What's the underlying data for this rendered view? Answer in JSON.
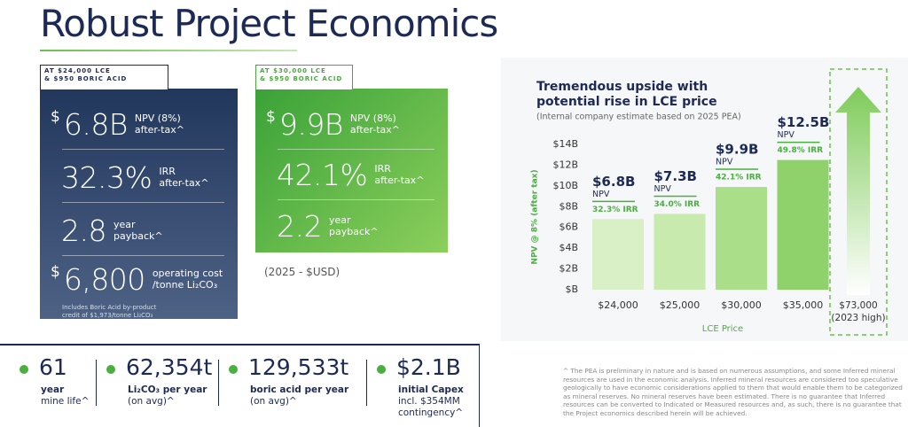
{
  "title": "Robust Project Economics",
  "cards": [
    {
      "tag": [
        "AT $24,000 LCE",
        "& $950 BORIC ACID"
      ],
      "metrics": [
        {
          "prefix": "$",
          "value": "6.8B",
          "label": [
            "NPV (8%)",
            "after-tax^"
          ]
        },
        {
          "value": "32.3%",
          "label": [
            "IRR",
            "after-tax^"
          ]
        },
        {
          "value": "2.8",
          "label": [
            "year",
            "payback^"
          ]
        },
        {
          "prefix": "$",
          "value": "6,800",
          "label": [
            "operating cost",
            "/tonne Li₂CO₃"
          ]
        }
      ],
      "note": [
        "Includes Boric Acid by-product",
        "credit of $1,973/tonne Li₂CO₃"
      ]
    },
    {
      "tag": [
        "AT $30,000 LCE",
        "& $950 BORIC ACID"
      ],
      "metrics": [
        {
          "prefix": "$",
          "value": "9.9B",
          "label": [
            "NPV (8%)",
            "after-tax^"
          ]
        },
        {
          "value": "42.1%",
          "label": [
            "IRR",
            "after-tax^"
          ]
        },
        {
          "value": "2.2",
          "label": [
            "year",
            "payback^"
          ]
        }
      ]
    }
  ],
  "currency_note": "(2025 - $USD)",
  "highlights": [
    {
      "value": "61",
      "label": [
        "year",
        "mine life^"
      ]
    },
    {
      "value": "62,354t",
      "label": [
        "Li₂CO₃ per year",
        "(on avg)^"
      ]
    },
    {
      "value": "129,533t",
      "label": [
        "boric acid per year",
        "(on avg)^"
      ]
    },
    {
      "value": "$2.1B",
      "label": [
        "initial Capex",
        "incl. $354MM",
        "contingency^"
      ]
    }
  ],
  "footnote": "^ The PEA is preliminary in nature and is based on numerous assumptions, and some Inferred mineral resources are used in the economic analysis. Inferred mineral resources are considered too speculative geologically to have economic considerations applied to them that would enable them to be categorized as mineral reserves. No mineral reserves have been estimated. There is no guarantee that Inferred resources can be converted to Indicated or Measured resources and, as such, there is no guarantee that the Project economics described herein will be achieved.",
  "chart_data": {
    "type": "bar",
    "title": [
      "Tremendous upside with",
      "potential rise in LCE price"
    ],
    "subtitle": "(Internal company estimate based on 2025 PEA)",
    "ylabel": "NPV @ 8% (after tax)",
    "xlabel": "LCE Price",
    "categories": [
      "$24,000",
      "$25,000",
      "$30,000",
      "$35,000"
    ],
    "values": [
      6.8,
      7.3,
      9.9,
      12.5
    ],
    "value_labels": [
      "$6.8B",
      "$7.3B",
      "$9.9B",
      "$12.5B"
    ],
    "value_sublabel": "NPV",
    "irr_labels": [
      "32.3% IRR",
      "34.0% IRR",
      "42.1% IRR",
      "49.8% IRR"
    ],
    "colors": [
      "#d9f0c6",
      "#c8eaaf",
      "#aade88",
      "#8fd16a"
    ],
    "ylim": [
      0,
      14
    ],
    "yticks": [
      {
        "value": 0,
        "label": "$B"
      },
      {
        "value": 2,
        "label": "$2B"
      },
      {
        "value": 4,
        "label": "$4B"
      },
      {
        "value": 6,
        "label": "$6B"
      },
      {
        "value": 8,
        "label": "$8B"
      },
      {
        "value": 10,
        "label": "$10B"
      },
      {
        "value": 12,
        "label": "$12B"
      },
      {
        "value": 14,
        "label": "$14B"
      }
    ],
    "grid": false,
    "annotation": [
      "$73,000",
      "(2023 high)"
    ]
  }
}
